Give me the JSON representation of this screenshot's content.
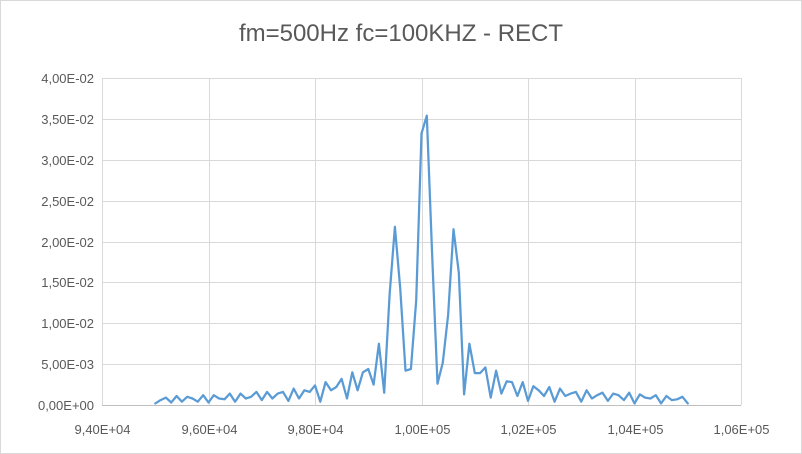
{
  "chart_data": {
    "type": "line",
    "title": "fm=500Hz fc=100KHZ - RECT",
    "xlabel": "",
    "ylabel": "",
    "xlim": [
      94000,
      106000
    ],
    "ylim": [
      0,
      0.04
    ],
    "x_ticks": [
      94000,
      96000,
      98000,
      100000,
      102000,
      104000,
      106000
    ],
    "x_tick_labels": [
      "9,40E+04",
      "9,60E+04",
      "9,80E+04",
      "1,00E+05",
      "1,02E+05",
      "1,04E+05",
      "1,06E+05"
    ],
    "y_ticks": [
      0,
      0.005,
      0.01,
      0.015,
      0.02,
      0.025,
      0.03,
      0.035,
      0.04
    ],
    "y_tick_labels": [
      "0,00E+00",
      "5,00E-03",
      "1,00E-02",
      "1,50E-02",
      "2,00E-02",
      "2,50E-02",
      "3,00E-02",
      "3,50E-02",
      "4,00E-02"
    ],
    "grid": true,
    "legend": "none",
    "color": "#5b9bd5",
    "series": [
      {
        "x": [
          95000,
          95100,
          95200,
          95300,
          95400,
          95500,
          95600,
          95700,
          95800,
          95900,
          96000,
          96100,
          96200,
          96300,
          96400,
          96500,
          96600,
          96700,
          96800,
          96900,
          97000,
          97100,
          97200,
          97300,
          97400,
          97500,
          97600,
          97700,
          97800,
          97900,
          98000,
          98100,
          98200,
          98300,
          98400,
          98500,
          98600,
          98700,
          98800,
          98900,
          99000,
          99100,
          99200,
          99300,
          99400,
          99500,
          99600,
          99700,
          99800,
          99900,
          100000,
          100100,
          100200,
          100300,
          100400,
          100500,
          100600,
          100700,
          100800,
          100900,
          101000,
          101100,
          101200,
          101300,
          101400,
          101500,
          101600,
          101700,
          101800,
          101900,
          102000,
          102100,
          102200,
          102300,
          102400,
          102500,
          102600,
          102700,
          102800,
          102900,
          103000,
          103100,
          103200,
          103300,
          103400,
          103500,
          103600,
          103700,
          103800,
          103900,
          104000,
          104100,
          104200,
          104300,
          104400,
          104500,
          104600,
          104700,
          104800,
          104900,
          105000
        ],
        "y": [
          0.0002,
          0.0006,
          0.0009,
          0.0003,
          0.0011,
          0.0004,
          0.001,
          0.0008,
          0.0004,
          0.0012,
          0.0003,
          0.0012,
          0.0008,
          0.0007,
          0.0014,
          0.0004,
          0.0014,
          0.0008,
          0.001,
          0.0016,
          0.0006,
          0.0016,
          0.0008,
          0.0014,
          0.0016,
          0.0005,
          0.002,
          0.0008,
          0.0018,
          0.0016,
          0.0024,
          0.0004,
          0.0028,
          0.0018,
          0.0022,
          0.0032,
          0.0008,
          0.004,
          0.0018,
          0.004,
          0.0044,
          0.0025,
          0.0075,
          0.0015,
          0.0135,
          0.0218,
          0.0143,
          0.0042,
          0.0044,
          0.0128,
          0.0332,
          0.0354,
          0.0182,
          0.0026,
          0.0052,
          0.011,
          0.0215,
          0.0162,
          0.0013,
          0.0075,
          0.0039,
          0.0039,
          0.0046,
          0.0009,
          0.0042,
          0.0014,
          0.0029,
          0.0028,
          0.0011,
          0.0028,
          0.0005,
          0.0023,
          0.0018,
          0.0011,
          0.0022,
          0.0004,
          0.002,
          0.0011,
          0.0014,
          0.0016,
          0.0004,
          0.0018,
          0.0008,
          0.0012,
          0.0015,
          0.0005,
          0.0014,
          0.0012,
          0.0006,
          0.0015,
          0.0002,
          0.0013,
          0.0009,
          0.0008,
          0.0012,
          0.0002,
          0.0011,
          0.0006,
          0.0007,
          0.001,
          0.0002
        ]
      }
    ]
  }
}
